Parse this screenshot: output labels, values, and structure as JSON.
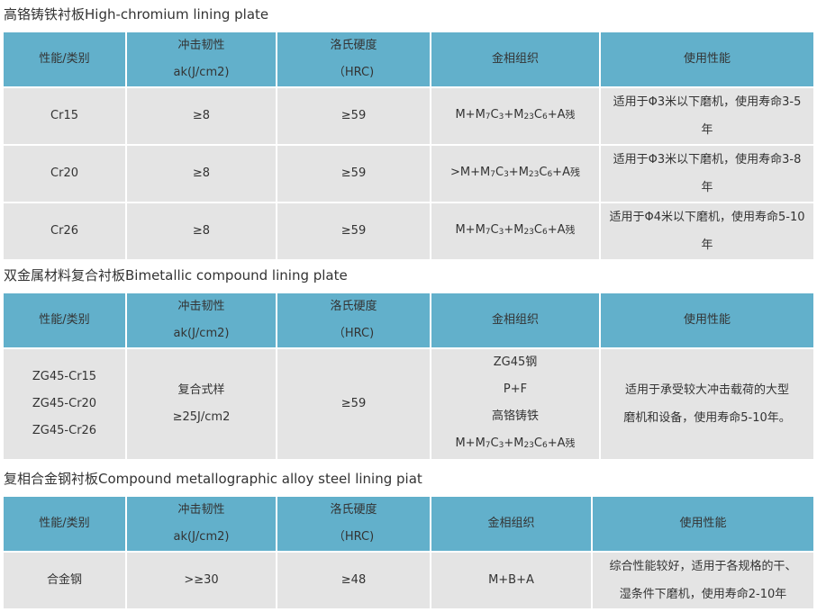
{
  "headers": [
    "性能/类别",
    "冲击韧性",
    "ak(J/cm2)",
    "洛氏硬度",
    "（HRC)",
    "金相组织",
    "使用性能"
  ],
  "headers3": [
    "性能/类别",
    "冲击韧性",
    "ak(J/cm2)",
    "洛氏硬度",
    "（HRC)",
    "金相组织",
    "使用性能"
  ],
  "formula": [
    "M+M",
    "7",
    "C",
    "3",
    "+M",
    "23",
    "C",
    "6",
    "+A",
    "残"
  ],
  "sections": [
    {
      "title": "高铬铸铁衬板High-chromium lining plate",
      "rows": [
        {
          "type": "Cr15",
          "impact": "≥8",
          "hrc": "≥59",
          "prefix": "",
          "usage": [
            "适用于Φ3米以下磨机，使用寿命3-5",
            "年"
          ]
        },
        {
          "type": "Cr20",
          "impact": "≥8",
          "hrc": "≥59",
          "prefix": ">",
          "usage": [
            "适用于Φ3米以下磨机，使用寿命3-8",
            "年"
          ]
        },
        {
          "type": "Cr26",
          "impact": "≥8",
          "hrc": "≥59",
          "prefix": "",
          "usage": [
            "适用于Φ4米以下磨机，使用寿命5-10",
            "年"
          ]
        }
      ]
    },
    {
      "title": "双金属材料复合衬板Bimetallic compound lining plate",
      "rows": [
        {
          "types": [
            "ZG45-Cr15",
            "ZG45-Cr20",
            "ZG45-Cr26"
          ],
          "impact": [
            "复合式样",
            "≥25J/cm2"
          ],
          "hrc": "≥59",
          "structure": [
            "ZG45钢",
            "P+F",
            "高铬铸铁"
          ],
          "usage": [
            "适用于承受较大冲击载荷的大型",
            "磨机和设备，使用寿命5-10年。"
          ]
        }
      ]
    },
    {
      "title": "复相合金钢衬板Compound metallographic alloy steel lining piat",
      "rows": [
        {
          "type": "合金钢",
          "impact": ">≥30",
          "hrc": "≥48",
          "structure": "M+B+A",
          "usage": [
            "综合性能较好，适用于各规格的干、",
            "湿条件下磨机，使用寿命2-10年"
          ]
        }
      ]
    }
  ]
}
